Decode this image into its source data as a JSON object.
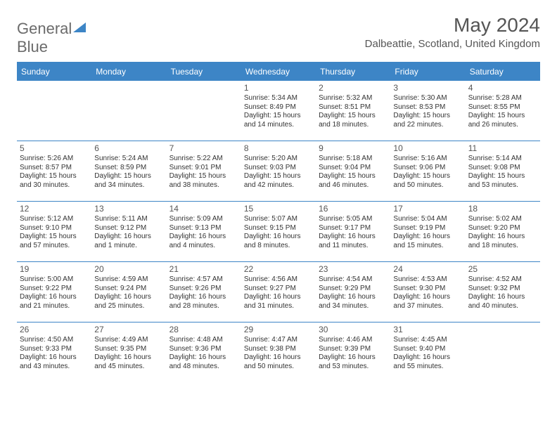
{
  "brand": {
    "name_gray": "General",
    "name_blue": "Blue"
  },
  "title": "May 2024",
  "location": "Dalbeattie, Scotland, United Kingdom",
  "colors": {
    "accent": "#3d85c6",
    "text": "#555",
    "body": "#333",
    "bg": "#ffffff"
  },
  "weekdays": [
    "Sunday",
    "Monday",
    "Tuesday",
    "Wednesday",
    "Thursday",
    "Friday",
    "Saturday"
  ],
  "layout": {
    "weeks": 5,
    "cols": 7,
    "first_day_col": 3
  },
  "days": [
    {
      "n": "1",
      "sr": "Sunrise: 5:34 AM",
      "ss": "Sunset: 8:49 PM",
      "dl": "Daylight: 15 hours and 14 minutes."
    },
    {
      "n": "2",
      "sr": "Sunrise: 5:32 AM",
      "ss": "Sunset: 8:51 PM",
      "dl": "Daylight: 15 hours and 18 minutes."
    },
    {
      "n": "3",
      "sr": "Sunrise: 5:30 AM",
      "ss": "Sunset: 8:53 PM",
      "dl": "Daylight: 15 hours and 22 minutes."
    },
    {
      "n": "4",
      "sr": "Sunrise: 5:28 AM",
      "ss": "Sunset: 8:55 PM",
      "dl": "Daylight: 15 hours and 26 minutes."
    },
    {
      "n": "5",
      "sr": "Sunrise: 5:26 AM",
      "ss": "Sunset: 8:57 PM",
      "dl": "Daylight: 15 hours and 30 minutes."
    },
    {
      "n": "6",
      "sr": "Sunrise: 5:24 AM",
      "ss": "Sunset: 8:59 PM",
      "dl": "Daylight: 15 hours and 34 minutes."
    },
    {
      "n": "7",
      "sr": "Sunrise: 5:22 AM",
      "ss": "Sunset: 9:01 PM",
      "dl": "Daylight: 15 hours and 38 minutes."
    },
    {
      "n": "8",
      "sr": "Sunrise: 5:20 AM",
      "ss": "Sunset: 9:03 PM",
      "dl": "Daylight: 15 hours and 42 minutes."
    },
    {
      "n": "9",
      "sr": "Sunrise: 5:18 AM",
      "ss": "Sunset: 9:04 PM",
      "dl": "Daylight: 15 hours and 46 minutes."
    },
    {
      "n": "10",
      "sr": "Sunrise: 5:16 AM",
      "ss": "Sunset: 9:06 PM",
      "dl": "Daylight: 15 hours and 50 minutes."
    },
    {
      "n": "11",
      "sr": "Sunrise: 5:14 AM",
      "ss": "Sunset: 9:08 PM",
      "dl": "Daylight: 15 hours and 53 minutes."
    },
    {
      "n": "12",
      "sr": "Sunrise: 5:12 AM",
      "ss": "Sunset: 9:10 PM",
      "dl": "Daylight: 15 hours and 57 minutes."
    },
    {
      "n": "13",
      "sr": "Sunrise: 5:11 AM",
      "ss": "Sunset: 9:12 PM",
      "dl": "Daylight: 16 hours and 1 minute."
    },
    {
      "n": "14",
      "sr": "Sunrise: 5:09 AM",
      "ss": "Sunset: 9:13 PM",
      "dl": "Daylight: 16 hours and 4 minutes."
    },
    {
      "n": "15",
      "sr": "Sunrise: 5:07 AM",
      "ss": "Sunset: 9:15 PM",
      "dl": "Daylight: 16 hours and 8 minutes."
    },
    {
      "n": "16",
      "sr": "Sunrise: 5:05 AM",
      "ss": "Sunset: 9:17 PM",
      "dl": "Daylight: 16 hours and 11 minutes."
    },
    {
      "n": "17",
      "sr": "Sunrise: 5:04 AM",
      "ss": "Sunset: 9:19 PM",
      "dl": "Daylight: 16 hours and 15 minutes."
    },
    {
      "n": "18",
      "sr": "Sunrise: 5:02 AM",
      "ss": "Sunset: 9:20 PM",
      "dl": "Daylight: 16 hours and 18 minutes."
    },
    {
      "n": "19",
      "sr": "Sunrise: 5:00 AM",
      "ss": "Sunset: 9:22 PM",
      "dl": "Daylight: 16 hours and 21 minutes."
    },
    {
      "n": "20",
      "sr": "Sunrise: 4:59 AM",
      "ss": "Sunset: 9:24 PM",
      "dl": "Daylight: 16 hours and 25 minutes."
    },
    {
      "n": "21",
      "sr": "Sunrise: 4:57 AM",
      "ss": "Sunset: 9:26 PM",
      "dl": "Daylight: 16 hours and 28 minutes."
    },
    {
      "n": "22",
      "sr": "Sunrise: 4:56 AM",
      "ss": "Sunset: 9:27 PM",
      "dl": "Daylight: 16 hours and 31 minutes."
    },
    {
      "n": "23",
      "sr": "Sunrise: 4:54 AM",
      "ss": "Sunset: 9:29 PM",
      "dl": "Daylight: 16 hours and 34 minutes."
    },
    {
      "n": "24",
      "sr": "Sunrise: 4:53 AM",
      "ss": "Sunset: 9:30 PM",
      "dl": "Daylight: 16 hours and 37 minutes."
    },
    {
      "n": "25",
      "sr": "Sunrise: 4:52 AM",
      "ss": "Sunset: 9:32 PM",
      "dl": "Daylight: 16 hours and 40 minutes."
    },
    {
      "n": "26",
      "sr": "Sunrise: 4:50 AM",
      "ss": "Sunset: 9:33 PM",
      "dl": "Daylight: 16 hours and 43 minutes."
    },
    {
      "n": "27",
      "sr": "Sunrise: 4:49 AM",
      "ss": "Sunset: 9:35 PM",
      "dl": "Daylight: 16 hours and 45 minutes."
    },
    {
      "n": "28",
      "sr": "Sunrise: 4:48 AM",
      "ss": "Sunset: 9:36 PM",
      "dl": "Daylight: 16 hours and 48 minutes."
    },
    {
      "n": "29",
      "sr": "Sunrise: 4:47 AM",
      "ss": "Sunset: 9:38 PM",
      "dl": "Daylight: 16 hours and 50 minutes."
    },
    {
      "n": "30",
      "sr": "Sunrise: 4:46 AM",
      "ss": "Sunset: 9:39 PM",
      "dl": "Daylight: 16 hours and 53 minutes."
    },
    {
      "n": "31",
      "sr": "Sunrise: 4:45 AM",
      "ss": "Sunset: 9:40 PM",
      "dl": "Daylight: 16 hours and 55 minutes."
    }
  ]
}
